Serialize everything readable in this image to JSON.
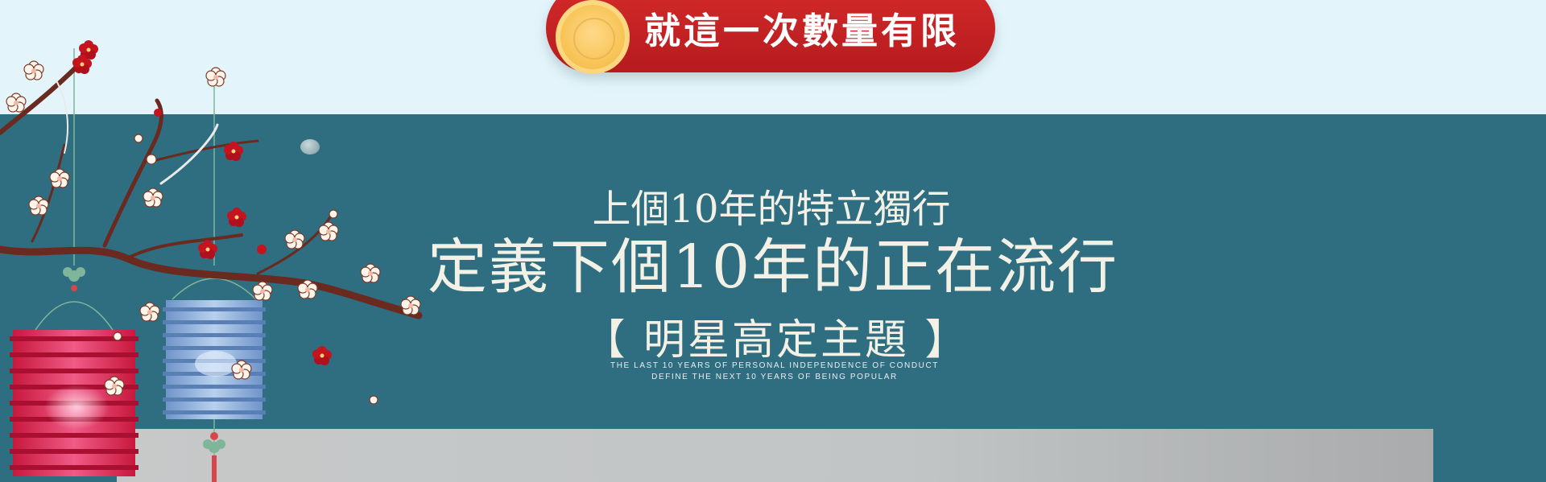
{
  "promo": {
    "text": "就這一次數量有限"
  },
  "headline": {
    "line1": "上個10年的特立獨行",
    "line2": "定義下個10年的正在流行",
    "line3": "【 明星高定主題 】"
  },
  "subtitle": {
    "line1": "THE LAST 10 YEARS OF PERSONAL INDEPENDENCE OF CONDUCT",
    "line2": "DEFINE THE NEXT 10 YEARS OF BEING POPULAR"
  },
  "colors": {
    "top_band": "#e3f5fb",
    "teal_band": "#2e6e80",
    "promo_red": "#c42224",
    "coin_gold": "#f7c457",
    "headline_text": "#f3f0e6"
  },
  "icons": [
    "plum-blossom-branch-illustration",
    "red-paper-lantern-icon",
    "blue-paper-lantern-icon",
    "chinese-knot-icon",
    "gold-coin-icon"
  ]
}
